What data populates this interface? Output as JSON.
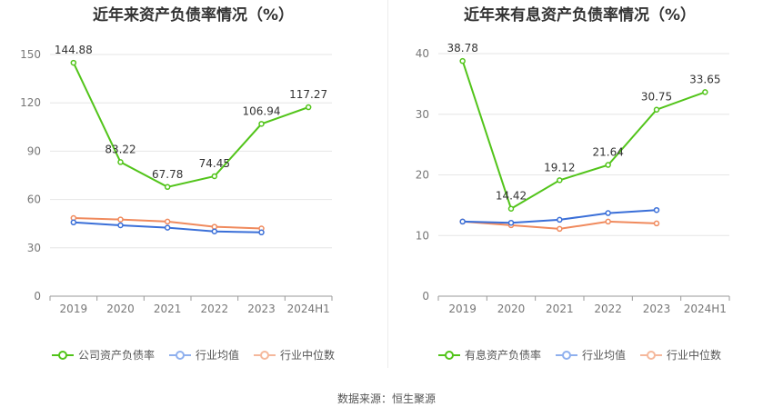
{
  "footer": "数据来源：恒生聚源",
  "colors": {
    "company": "#52c41a",
    "industry_avg": "#3a6fd8",
    "industry_median": "#f08a5d"
  },
  "chart_data": [
    {
      "type": "line",
      "title": "近年来资产负债率情况（%）",
      "categories": [
        "2019",
        "2020",
        "2021",
        "2022",
        "2023",
        "2024H1"
      ],
      "ylim": [
        0,
        150
      ],
      "yticks": [
        0,
        30,
        60,
        90,
        120,
        150
      ],
      "grid": true,
      "legend_position": "bottom",
      "series": [
        {
          "name": "公司资产负债率",
          "values": [
            144.88,
            83.22,
            67.78,
            74.45,
            106.94,
            117.27
          ],
          "labels": [
            "144.88",
            "83.22",
            "67.78",
            "74.45",
            "106.94",
            "117.27"
          ]
        },
        {
          "name": "行业均值",
          "values": [
            45.8,
            44.0,
            42.5,
            40.2,
            39.6,
            null
          ]
        },
        {
          "name": "行业中位数",
          "values": [
            48.5,
            47.6,
            46.3,
            43.1,
            42.0,
            null
          ]
        }
      ]
    },
    {
      "type": "line",
      "title": "近年来有息资产负债率情况（%）",
      "categories": [
        "2019",
        "2020",
        "2021",
        "2022",
        "2023",
        "2024H1"
      ],
      "ylim": [
        0,
        40
      ],
      "yticks": [
        0,
        10,
        20,
        30,
        40
      ],
      "grid": true,
      "legend_position": "bottom",
      "series": [
        {
          "name": "有息资产负债率",
          "values": [
            38.78,
            14.42,
            19.12,
            21.64,
            30.75,
            33.65
          ],
          "labels": [
            "38.78",
            "14.42",
            "19.12",
            "21.64",
            "30.75",
            "33.65"
          ]
        },
        {
          "name": "行业均值",
          "values": [
            12.3,
            12.1,
            12.6,
            13.7,
            14.2,
            null
          ]
        },
        {
          "name": "行业中位数",
          "values": [
            12.3,
            11.7,
            11.1,
            12.3,
            12.0,
            null
          ]
        }
      ]
    }
  ]
}
